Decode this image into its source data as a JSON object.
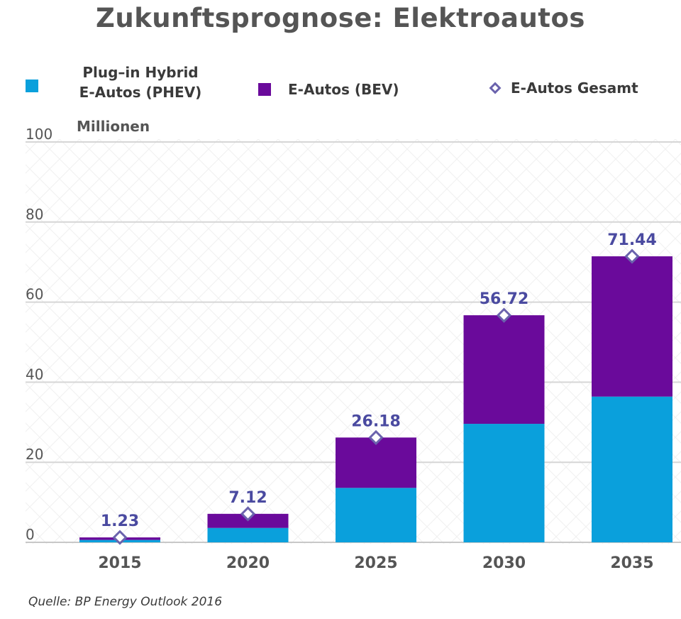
{
  "chart_data": {
    "type": "bar",
    "stacked": true,
    "title": "Zukunftsprognose: Elektroautos",
    "unit_label": "Millionen",
    "categories": [
      "2015",
      "2020",
      "2025",
      "2030",
      "2035"
    ],
    "series": [
      {
        "name": "Plug–in Hybrid E-Autos (PHEV)",
        "color": "#0aa0dc",
        "values": [
          0.6,
          3.6,
          13.6,
          29.6,
          36.4
        ]
      },
      {
        "name": "E-Autos (BEV)",
        "color": "#6a0a9b",
        "values": [
          0.63,
          3.52,
          12.58,
          27.12,
          35.04
        ]
      }
    ],
    "totals": {
      "name": "E-Autos Gesamt",
      "values": [
        1.23,
        7.12,
        26.18,
        56.72,
        71.44
      ],
      "labels": [
        "1.23",
        "7.12",
        "26.18",
        "56.72",
        "71.44"
      ]
    },
    "ylim": [
      0,
      100
    ],
    "yticks": [
      0,
      20,
      40,
      60,
      80,
      100
    ],
    "grid": true,
    "legend_position": "top",
    "source": "Quelle: BP Energy Outlook 2016"
  },
  "legend": {
    "phev_line1": "Plug–in Hybrid",
    "phev_line2": "E-Autos (PHEV)",
    "bev": "E-Autos (BEV)",
    "total": "E-Autos Gesamt"
  }
}
